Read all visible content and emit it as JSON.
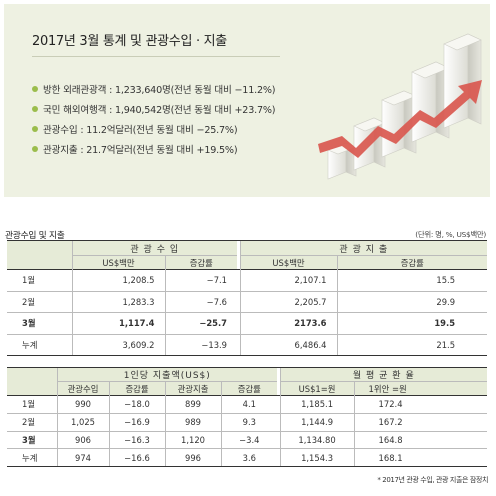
{
  "summary": {
    "title": "2017년 3월 통계 및 관광수입 · 지출",
    "bullets": [
      "방한 외래관광객 : 1,233,640명(전년 동월 대비 −11.2%)",
      "국민 해외여행객 : 1,940,542명(전년 동월 대비 +23.7%)",
      "관광수입 : 11.2억달러(전년 동월 대비 −25.7%)",
      "관광지출 : 21.7억달러(전년 동월 대비 +19.5%)"
    ],
    "colors": {
      "panel": "#eef1e2",
      "bullet": "#9bbd4c",
      "arrow": "#d9584f"
    }
  },
  "table1": {
    "title": "관광수입 및 지출",
    "unit_note": "(단위: 명, %, US$백만)",
    "group_income": "관 광 수 입",
    "group_expense": "관 광 지 출",
    "sub_amount": "US$백만",
    "sub_rate": "증감률",
    "rows": [
      {
        "label": "1월",
        "c1": "1,208.5",
        "c2": "−7.1",
        "c3": "2,107.1",
        "c4": "15.5"
      },
      {
        "label": "2월",
        "c1": "1,283.3",
        "c2": "−7.6",
        "c3": "2,205.7",
        "c4": "29.9"
      },
      {
        "label": "3월",
        "c1": "1,117.4",
        "c2": "−25.7",
        "c3": "2173.6",
        "c4": "19.5"
      },
      {
        "label": "누계",
        "c1": "3,609.2",
        "c2": "−13.9",
        "c3": "6,486.4",
        "c4": "21.5"
      }
    ]
  },
  "table2": {
    "group_per_person": "1인당 지출액(US$)",
    "group_exchange": "월 평 균 환 율",
    "headers": [
      "관광수입",
      "증감률",
      "관광지출",
      "증감률",
      "US$1=원",
      "1위안 =원"
    ],
    "rows": [
      {
        "label": "1월",
        "c1": "990",
        "c2": "−18.0",
        "c3": "899",
        "c4": "4.1",
        "c5": "1,185.1",
        "c6": "172.4"
      },
      {
        "label": "2월",
        "c1": "1,025",
        "c2": "−16.9",
        "c3": "989",
        "c4": "9.3",
        "c5": "1,144.9",
        "c6": "167.2"
      },
      {
        "label": "3월",
        "c1": "906",
        "c2": "−16.3",
        "c3": "1,120",
        "c4": "−3.4",
        "c5": "1,134.80",
        "c6": "164.8"
      },
      {
        "label": "누계",
        "c1": "974",
        "c2": "−16.6",
        "c3": "996",
        "c4": "3.6",
        "c5": "1,154.3",
        "c6": "168.1"
      }
    ],
    "footnote": "* 2017년 관광 수입, 관광 지출은 잠정치"
  }
}
